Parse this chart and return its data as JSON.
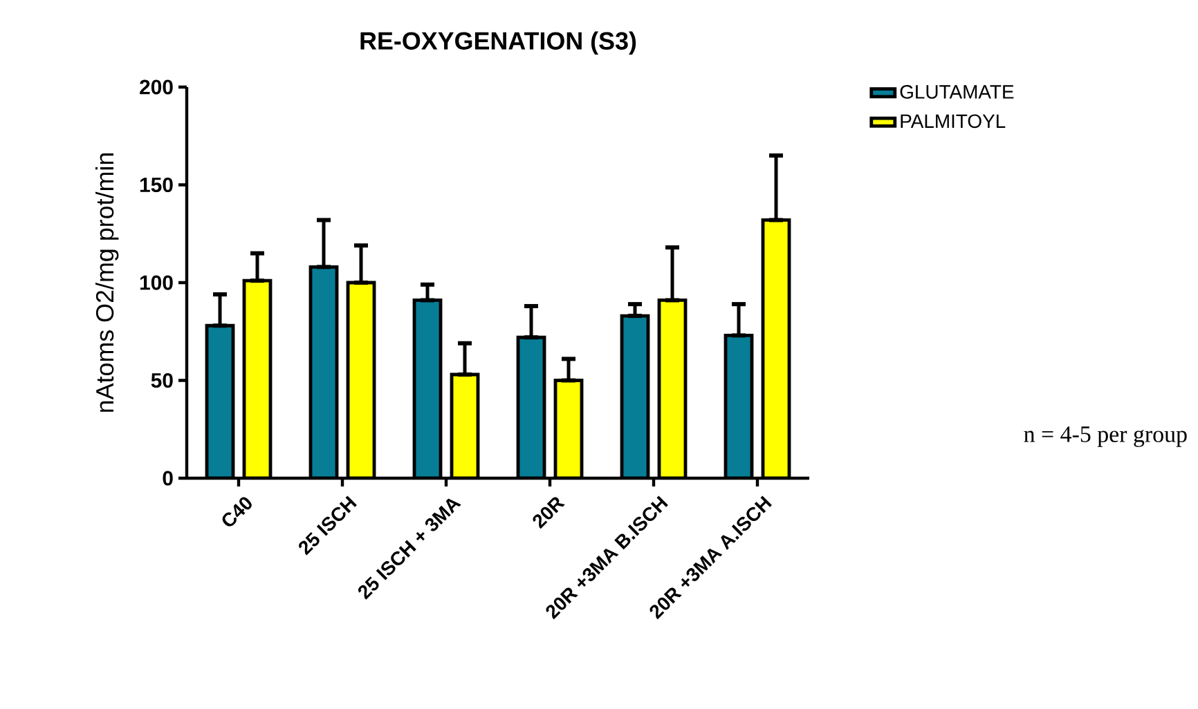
{
  "chart_data": {
    "type": "bar",
    "title": "RE-OXYGENATION (S3)",
    "ylabel": "nAtoms O2/mg prot/min",
    "categories": [
      "C40",
      "25 ISCH",
      "25 ISCH + 3MA",
      "20R",
      "20R +3MA  B.ISCH",
      "20R +3MA  A.ISCH"
    ],
    "series": [
      {
        "name": "GLUTAMATE",
        "color": "#077d96",
        "values": [
          78,
          108,
          91,
          72,
          83,
          73
        ],
        "errors": [
          [
            78,
            94
          ],
          [
            108,
            132
          ],
          [
            91,
            99
          ],
          [
            72,
            88
          ],
          [
            83,
            89
          ],
          [
            73,
            89
          ]
        ]
      },
      {
        "name": "PALMITOYL",
        "color": "#ffff00",
        "values": [
          101,
          100,
          53,
          50,
          91,
          132
        ],
        "errors": [
          [
            101,
            115
          ],
          [
            100,
            119
          ],
          [
            53,
            69
          ],
          [
            50,
            61
          ],
          [
            91,
            118
          ],
          [
            132,
            165
          ]
        ]
      }
    ],
    "ylim": [
      0,
      200
    ],
    "yticks": [
      0,
      50,
      100,
      150,
      200
    ],
    "grid": false,
    "legend": "top right",
    "annotations": [
      "n = 4-5 per group"
    ]
  }
}
